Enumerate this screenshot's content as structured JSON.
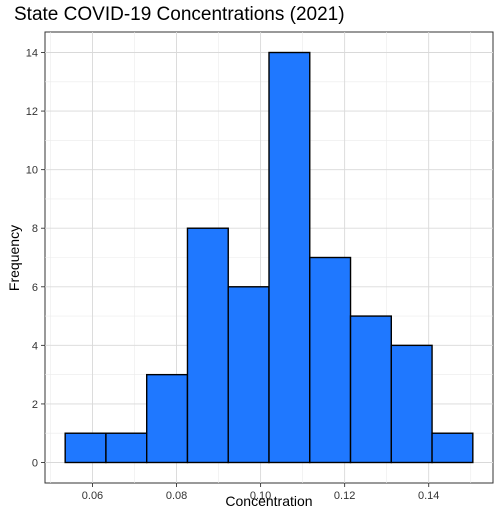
{
  "chart_data": {
    "type": "bar",
    "title": "State COVID-19 Concentrations (2021)",
    "xlabel": "Concentration",
    "ylabel": "Frequency",
    "bins": [
      {
        "x0": 0.0535,
        "x1": 0.0632,
        "count": 1
      },
      {
        "x0": 0.0632,
        "x1": 0.0729,
        "count": 1
      },
      {
        "x0": 0.0729,
        "x1": 0.0826,
        "count": 3
      },
      {
        "x0": 0.0826,
        "x1": 0.0923,
        "count": 8
      },
      {
        "x0": 0.0923,
        "x1": 0.102,
        "count": 6
      },
      {
        "x0": 0.102,
        "x1": 0.1117,
        "count": 14
      },
      {
        "x0": 0.1117,
        "x1": 0.1214,
        "count": 7
      },
      {
        "x0": 0.1214,
        "x1": 0.1311,
        "count": 5
      },
      {
        "x0": 0.1311,
        "x1": 0.1408,
        "count": 4
      },
      {
        "x0": 0.1408,
        "x1": 0.1505,
        "count": 1
      }
    ],
    "xlim": [
      0.0487,
      0.1553
    ],
    "ylim": [
      -0.7,
      14.7
    ],
    "xticks": [
      0.06,
      0.08,
      0.1,
      0.12,
      0.14
    ],
    "xtick_labels": [
      "0.06",
      "0.08",
      "0.10",
      "0.12",
      "0.14"
    ],
    "yticks": [
      0,
      2,
      4,
      6,
      8,
      10,
      12,
      14
    ],
    "ytick_labels": [
      "0",
      "2",
      "4",
      "6",
      "8",
      "10",
      "12",
      "14"
    ],
    "grid": true,
    "bar_color": "#1f78ff",
    "bar_edge_color": "#000000"
  }
}
